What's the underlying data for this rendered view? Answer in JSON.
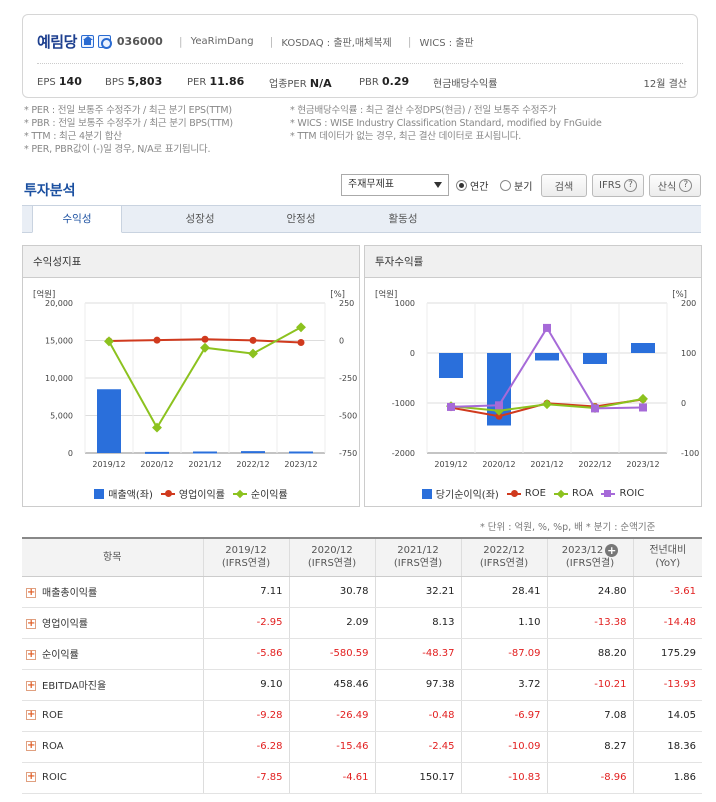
{
  "company": {
    "name": "예림당",
    "code": "036000",
    "eng_name": "YeaRimDang",
    "market": "KOSDAQ : 출판,매체복제",
    "wics": "WICS : 출판",
    "settle": "12월 결산"
  },
  "metrics": {
    "eps_label": "EPS",
    "eps": "140",
    "bps_label": "BPS",
    "bps": "5,803",
    "per_label": "PER",
    "per": "11.86",
    "sector_per_label": "업종PER",
    "sector_per": "N/A",
    "pbr_label": "PBR",
    "pbr": "0.29",
    "div_label": "현금배당수익률"
  },
  "notes_left": [
    "* PER : 전일 보통주 수정주가 / 최근 분기 EPS(TTM)",
    "* PBR : 전일 보통주 수정주가 / 최근 분기 BPS(TTM)",
    "* TTM : 최근 4분기 합산",
    "* PER, PBR값이 (-)일 경우, N/A로 표기됩니다."
  ],
  "notes_right": [
    "* 현금배당수익률 : 최근 결산 수정DPS(현금) / 전일 보통주 수정주가",
    "* WICS : WISE Industry Classification Standard, modified by FnGuide",
    "* TTM 데이터가 없는 경우, 최근 결산 데이터로 표시됩니다."
  ],
  "section_title": "투자분석",
  "controls": {
    "select_value": "주재무제표",
    "radio_annual": "연간",
    "radio_quarter": "분기",
    "search_btn": "검색",
    "ifrs_btn": "IFRS",
    "formula_btn": "산식"
  },
  "tabs": [
    "수익성",
    "성장성",
    "안정성",
    "활동성"
  ],
  "panel1": {
    "title": "수익성지표",
    "legend": [
      "매출액(좌)",
      "영업이익률",
      "순이익률"
    ]
  },
  "panel2": {
    "title": "투자수익률",
    "legend": [
      "당기순이익(좌)",
      "ROE",
      "ROA",
      "ROIC"
    ]
  },
  "chart_data": [
    {
      "type": "bar",
      "title": "수익성지표",
      "categories": [
        "2019/12",
        "2020/12",
        "2021/12",
        "2022/12",
        "2023/12"
      ],
      "left_unit": "[억원]",
      "right_unit": "[%]",
      "left_ticks": [
        "20,000",
        "15,000",
        "10,000",
        "5,000",
        "0"
      ],
      "right_ticks": [
        "250",
        "0",
        "-250",
        "-500",
        "-750"
      ],
      "ylim_left": [
        0,
        20000
      ],
      "ylim_right": [
        -750,
        250
      ],
      "series": [
        {
          "name": "매출액(좌)",
          "axis": "left",
          "type": "bar",
          "color": "#2a6fdb",
          "values": [
            8500,
            150,
            200,
            250,
            200
          ]
        },
        {
          "name": "영업이익률",
          "axis": "right",
          "type": "line",
          "color": "#d03a1e",
          "values": [
            -2.95,
            2.09,
            8.13,
            1.1,
            -13.38
          ]
        },
        {
          "name": "순이익률",
          "axis": "right",
          "type": "line",
          "color": "#8cc21f",
          "values": [
            -5.86,
            -580.59,
            -48.37,
            -87.09,
            88.2
          ]
        }
      ]
    },
    {
      "type": "bar",
      "title": "투자수익률",
      "categories": [
        "2019/12",
        "2020/12",
        "2021/12",
        "2022/12",
        "2023/12"
      ],
      "left_unit": "[억원]",
      "right_unit": "[%]",
      "left_ticks": [
        "1000",
        "0",
        "-1000",
        "-2000"
      ],
      "right_ticks": [
        "200",
        "100",
        "0",
        "-100"
      ],
      "ylim_left": [
        -2000,
        1000
      ],
      "ylim_right": [
        -100,
        200
      ],
      "series": [
        {
          "name": "당기순이익(좌)",
          "axis": "left",
          "type": "bar",
          "color": "#2a6fdb",
          "values": [
            -500,
            -1450,
            -150,
            -220,
            200
          ]
        },
        {
          "name": "ROE",
          "axis": "right",
          "type": "line",
          "color": "#d03a1e",
          "values": [
            -9.28,
            -26.49,
            -0.48,
            -6.97,
            7.08
          ]
        },
        {
          "name": "ROA",
          "axis": "right",
          "type": "line",
          "color": "#8cc21f",
          "values": [
            -6.28,
            -15.46,
            -2.45,
            -10.09,
            8.27
          ]
        },
        {
          "name": "ROIC",
          "axis": "right",
          "type": "line",
          "color": "#a66ad8",
          "values": [
            -7.85,
            -4.61,
            150.17,
            -10.83,
            -8.96
          ]
        }
      ]
    }
  ],
  "unit_note": "* 단위 : 억원, %, %p, 배      * 분기 : 순액기준",
  "table": {
    "header_item": "항목",
    "columns": [
      {
        "year": "2019/12",
        "type": "(IFRS연결)"
      },
      {
        "year": "2020/12",
        "type": "(IFRS연결)"
      },
      {
        "year": "2021/12",
        "type": "(IFRS연결)"
      },
      {
        "year": "2022/12",
        "type": "(IFRS연결)"
      },
      {
        "year": "2023/12",
        "type": "(IFRS연결)"
      }
    ],
    "yoy_label": "전년대비",
    "yoy_sub": "(YoY)",
    "rows": [
      {
        "label": "매출총이익률",
        "values": [
          "7.11",
          "30.78",
          "32.21",
          "28.41",
          "24.80",
          "-3.61"
        ]
      },
      {
        "label": "영업이익률",
        "values": [
          "-2.95",
          "2.09",
          "8.13",
          "1.10",
          "-13.38",
          "-14.48"
        ]
      },
      {
        "label": "순이익률",
        "values": [
          "-5.86",
          "-580.59",
          "-48.37",
          "-87.09",
          "88.20",
          "175.29"
        ]
      },
      {
        "label": "EBITDA마진율",
        "values": [
          "9.10",
          "458.46",
          "97.38",
          "3.72",
          "-10.21",
          "-13.93"
        ]
      },
      {
        "label": "ROE",
        "values": [
          "-9.28",
          "-26.49",
          "-0.48",
          "-6.97",
          "7.08",
          "14.05"
        ]
      },
      {
        "label": "ROA",
        "values": [
          "-6.28",
          "-15.46",
          "-2.45",
          "-10.09",
          "8.27",
          "18.36"
        ]
      },
      {
        "label": "ROIC",
        "values": [
          "-7.85",
          "-4.61",
          "150.17",
          "-10.83",
          "-8.96",
          "1.86"
        ]
      }
    ]
  }
}
